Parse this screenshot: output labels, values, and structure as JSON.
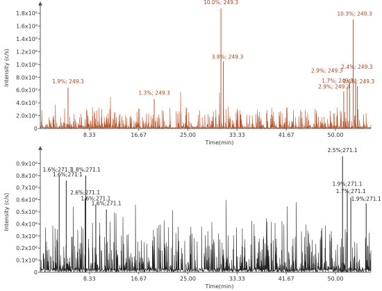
{
  "chart_data": [
    {
      "type": "line",
      "title": "",
      "xlabel": "Time(min)",
      "ylabel": "Intensity (c/s)",
      "xlim": [
        0,
        56
      ],
      "ylim": [
        0,
        1900000
      ],
      "x_ticks": [
        8.33,
        16.67,
        25.0,
        33.33,
        41.67,
        50.0
      ],
      "x_tick_labels": [
        "8.33",
        "16.67",
        "25.00",
        "33.33",
        "41.67",
        "50.00"
      ],
      "y_ticks": [
        0,
        200000,
        400000,
        600000,
        800000,
        1000000,
        1200000,
        1400000,
        1600000,
        1800000
      ],
      "y_tick_labels": [
        "0",
        "2.0x10⁵",
        "4.0x10⁵",
        "6.0x10⁵",
        "8.0x10⁵",
        "1.0x10⁶",
        "1.2x10⁶",
        "1.4x10⁶",
        "1.6x10⁶",
        "1.8x10⁶"
      ],
      "trace_color": "#b5532a",
      "peaks": [
        {
          "x": 4.7,
          "y": 640000,
          "label": "1.9%; 249.3"
        },
        {
          "x": 19.3,
          "y": 460000,
          "label": "1.3%; 249.3"
        },
        {
          "x": 30.6,
          "y": 1880000,
          "label": "10.0%; 249.3"
        },
        {
          "x": 31.0,
          "y": 1050000,
          "label": "3.8%; 249.3"
        },
        {
          "x": 51.4,
          "y": 580000,
          "label": "2.9%; 249.3"
        },
        {
          "x": 52.0,
          "y": 650000,
          "label": "1.7%; 249.3"
        },
        {
          "x": 52.4,
          "y": 720000,
          "label": "2.9%; 249.3"
        },
        {
          "x": 53.0,
          "y": 1700000,
          "label": "10.3%; 249.3"
        },
        {
          "x": 53.4,
          "y": 780000,
          "label": "2.4%; 249.3"
        },
        {
          "x": 53.7,
          "y": 660000,
          "label": "2.6%; 249.3"
        }
      ]
    },
    {
      "type": "line",
      "title": "",
      "xlabel": "Time(min)",
      "ylabel": "Intensity (c/s)",
      "xlim": [
        0,
        56
      ],
      "ylim": [
        0,
        1000000
      ],
      "x_ticks": [
        8.33,
        16.67,
        25.0,
        33.33,
        41.67,
        50.0
      ],
      "x_tick_labels": [
        "8.33",
        "16.67",
        "25.00",
        "33.33",
        "41.67",
        "50.00"
      ],
      "y_ticks": [
        0,
        100000,
        200000,
        300000,
        400000,
        500000,
        600000,
        700000,
        800000,
        900000
      ],
      "y_tick_labels": [
        "0",
        "0.1x10⁶",
        "0.2x10⁶",
        "0.3x10⁶",
        "0.4x10⁶",
        "0.5x10⁶",
        "0.6x10⁶",
        "0.7x10⁶",
        "0.8x10⁶",
        "0.9x10⁶"
      ],
      "trace_color": "#222222",
      "peaks": [
        {
          "x": 3.2,
          "y": 800000,
          "label": "1.6%;271.1"
        },
        {
          "x": 4.4,
          "y": 760000,
          "label": "1.6%;271.1"
        },
        {
          "x": 7.7,
          "y": 800000,
          "label": "1.8%;271.1"
        },
        {
          "x": 7.6,
          "y": 610000,
          "label": "2.6%;271.1"
        },
        {
          "x": 9.4,
          "y": 560000,
          "label": "1.6%;271.1"
        },
        {
          "x": 11.2,
          "y": 520000,
          "label": "1.6%;271.1"
        },
        {
          "x": 51.2,
          "y": 960000,
          "label": "2.5%;271.1"
        },
        {
          "x": 52.0,
          "y": 680000,
          "label": "1.9%;271.1"
        },
        {
          "x": 52.6,
          "y": 620000,
          "label": "1.7%;271.1"
        },
        {
          "x": 55.2,
          "y": 570000,
          "label": "1.9%;271.1"
        }
      ]
    }
  ]
}
